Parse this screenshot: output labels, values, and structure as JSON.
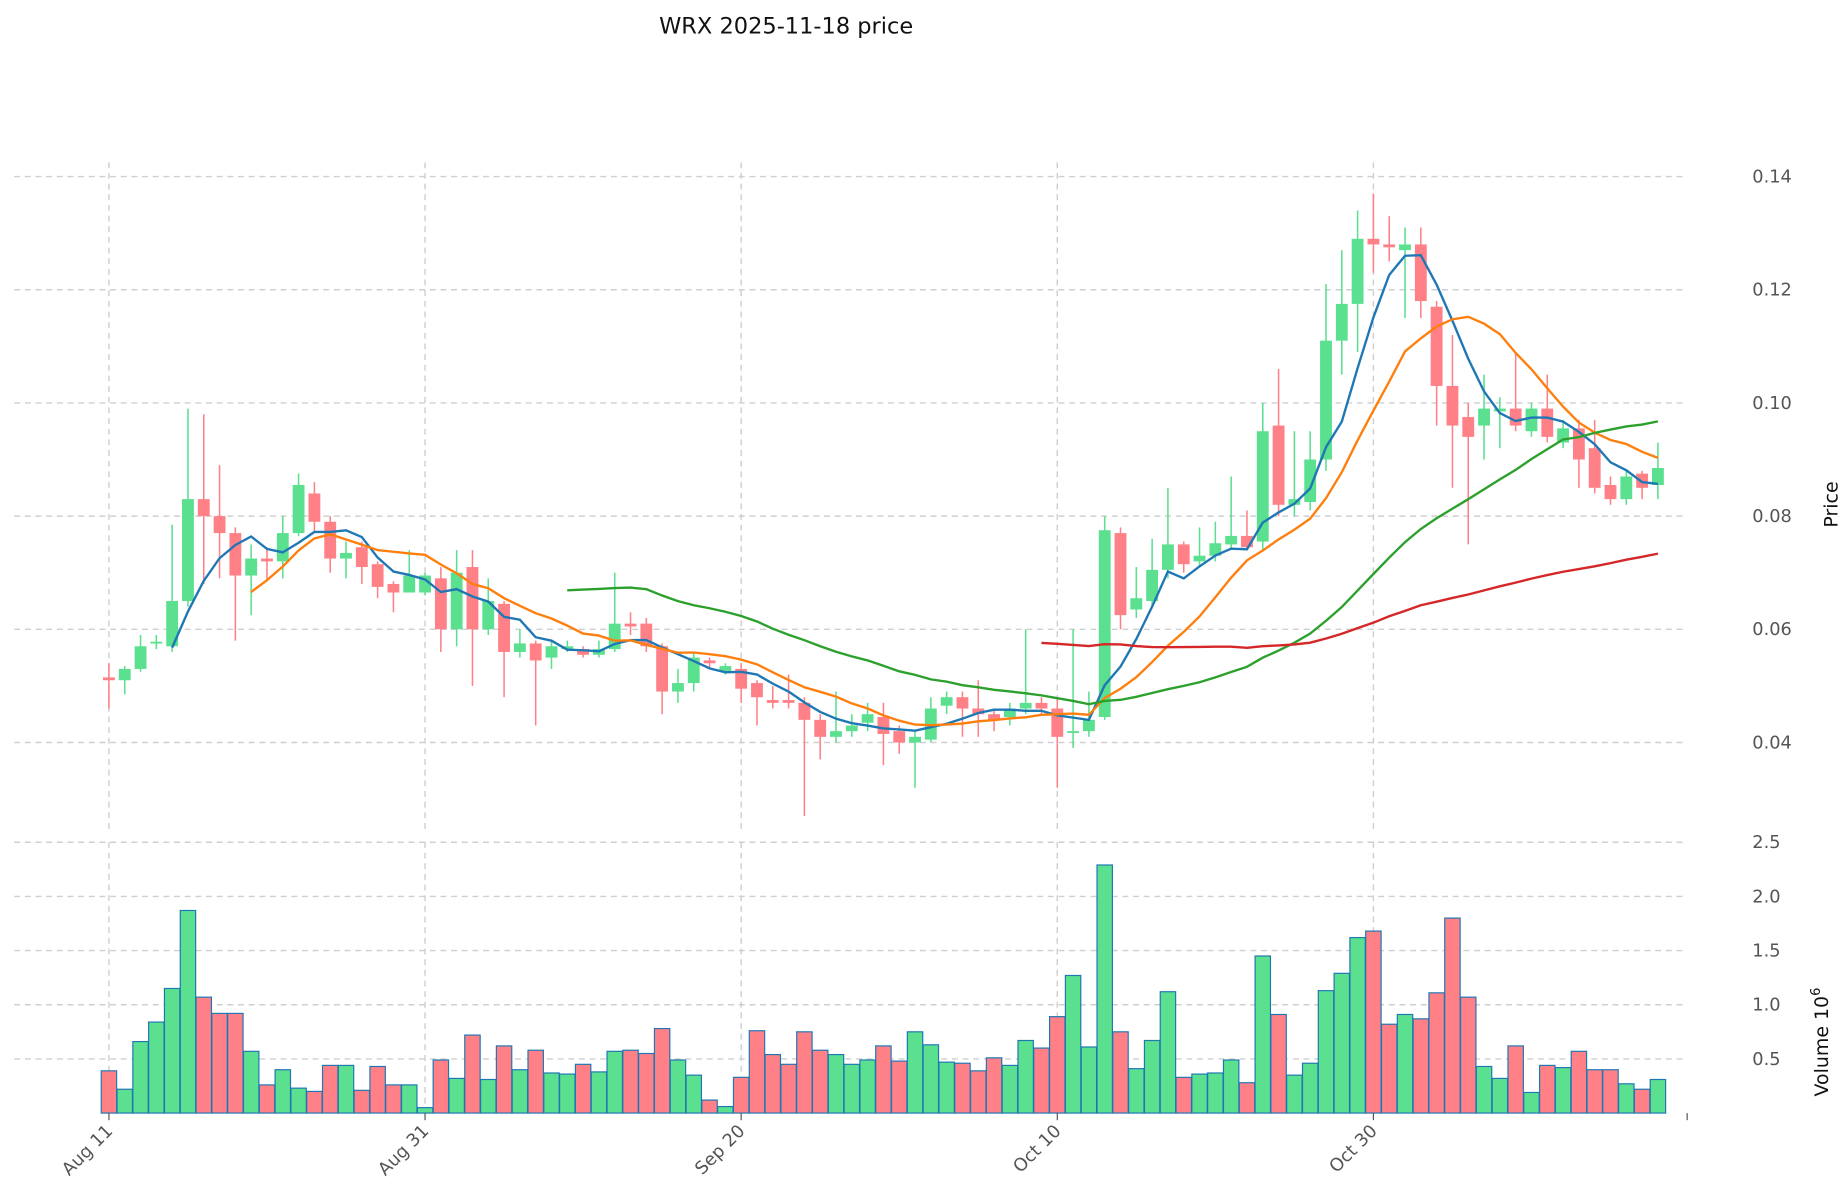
{
  "chart_data": {
    "type": "candlestick",
    "title": "WRX  2025-11-18  price",
    "ylabel": "Price",
    "volume_label": "Volume  10",
    "volume_exponent": "6",
    "ylim": [
      0.025,
      0.142
    ],
    "volume_ylim": [
      0,
      2.6
    ],
    "price_ticks": [
      "0.04",
      "0.06",
      "0.08",
      "0.10",
      "0.12",
      "0.14"
    ],
    "price_tick_values": [
      0.04,
      0.06,
      0.08,
      0.1,
      0.12,
      0.14
    ],
    "volume_ticks": [
      "0.5",
      "1.0",
      "1.5",
      "2.0",
      "2.5"
    ],
    "volume_tick_values": [
      0.5,
      1.0,
      1.5,
      2.0,
      2.5
    ],
    "x_ticks": [
      "Aug 11",
      "Aug 31",
      "Sep 20",
      "Oct 10",
      "Oct 30"
    ],
    "x_tick_index": [
      0,
      20,
      40,
      60,
      80
    ],
    "start_date": "2025-08-11",
    "colors": {
      "up": "#5ae08f",
      "down": "#ff8087",
      "volume_edge": "#1f77b4"
    },
    "moving_averages": [
      {
        "period": 5,
        "color": "#1f77b4"
      },
      {
        "period": 10,
        "color": "#ff7f0e"
      },
      {
        "period": 30,
        "color": "#2ca02c"
      },
      {
        "period": 60,
        "color": "#d62728"
      }
    ],
    "ohlc": [
      [
        0.0515,
        0.054,
        0.046,
        0.051
      ],
      [
        0.051,
        0.0535,
        0.0485,
        0.053
      ],
      [
        0.053,
        0.059,
        0.0525,
        0.057
      ],
      [
        0.0575,
        0.059,
        0.0565,
        0.0578
      ],
      [
        0.057,
        0.0785,
        0.056,
        0.065
      ],
      [
        0.065,
        0.099,
        0.064,
        0.083
      ],
      [
        0.083,
        0.098,
        0.068,
        0.08
      ],
      [
        0.08,
        0.089,
        0.069,
        0.077
      ],
      [
        0.077,
        0.078,
        0.058,
        0.0695
      ],
      [
        0.0695,
        0.075,
        0.0625,
        0.0725
      ],
      [
        0.0725,
        0.0745,
        0.0685,
        0.072
      ],
      [
        0.072,
        0.08,
        0.069,
        0.077
      ],
      [
        0.077,
        0.0875,
        0.0765,
        0.0855
      ],
      [
        0.084,
        0.086,
        0.077,
        0.079
      ],
      [
        0.079,
        0.08,
        0.07,
        0.0725
      ],
      [
        0.0725,
        0.0755,
        0.069,
        0.0735
      ],
      [
        0.0745,
        0.0755,
        0.068,
        0.071
      ],
      [
        0.0715,
        0.072,
        0.0655,
        0.0675
      ],
      [
        0.068,
        0.0685,
        0.063,
        0.0665
      ],
      [
        0.0665,
        0.074,
        0.0665,
        0.0695
      ],
      [
        0.0665,
        0.07,
        0.066,
        0.0695
      ],
      [
        0.069,
        0.071,
        0.056,
        0.06
      ],
      [
        0.06,
        0.074,
        0.057,
        0.07
      ],
      [
        0.071,
        0.074,
        0.05,
        0.06
      ],
      [
        0.06,
        0.069,
        0.059,
        0.065
      ],
      [
        0.0645,
        0.065,
        0.048,
        0.056
      ],
      [
        0.056,
        0.06,
        0.055,
        0.0575
      ],
      [
        0.0575,
        0.058,
        0.043,
        0.0545
      ],
      [
        0.055,
        0.058,
        0.053,
        0.057
      ],
      [
        0.0565,
        0.058,
        0.056,
        0.057
      ],
      [
        0.0565,
        0.057,
        0.055,
        0.0555
      ],
      [
        0.0555,
        0.058,
        0.055,
        0.0565
      ],
      [
        0.0565,
        0.07,
        0.056,
        0.061
      ],
      [
        0.061,
        0.063,
        0.059,
        0.0605
      ],
      [
        0.061,
        0.062,
        0.056,
        0.057
      ],
      [
        0.057,
        0.0575,
        0.045,
        0.049
      ],
      [
        0.049,
        0.053,
        0.047,
        0.0505
      ],
      [
        0.0505,
        0.056,
        0.049,
        0.055
      ],
      [
        0.0545,
        0.055,
        0.053,
        0.054
      ],
      [
        0.0525,
        0.054,
        0.052,
        0.0535
      ],
      [
        0.053,
        0.054,
        0.047,
        0.0495
      ],
      [
        0.0505,
        0.051,
        0.043,
        0.048
      ],
      [
        0.0475,
        0.05,
        0.046,
        0.047
      ],
      [
        0.0475,
        0.052,
        0.046,
        0.047
      ],
      [
        0.047,
        0.048,
        0.027,
        0.044
      ],
      [
        0.044,
        0.045,
        0.037,
        0.041
      ],
      [
        0.041,
        0.049,
        0.04,
        0.042
      ],
      [
        0.042,
        0.045,
        0.041,
        0.043
      ],
      [
        0.0435,
        0.047,
        0.042,
        0.045
      ],
      [
        0.0445,
        0.047,
        0.036,
        0.0415
      ],
      [
        0.042,
        0.043,
        0.038,
        0.04
      ],
      [
        0.04,
        0.042,
        0.032,
        0.041
      ],
      [
        0.0405,
        0.048,
        0.04,
        0.046
      ],
      [
        0.0465,
        0.049,
        0.045,
        0.048
      ],
      [
        0.048,
        0.049,
        0.041,
        0.046
      ],
      [
        0.046,
        0.051,
        0.041,
        0.045
      ],
      [
        0.045,
        0.046,
        0.042,
        0.044
      ],
      [
        0.0445,
        0.047,
        0.043,
        0.046
      ],
      [
        0.046,
        0.06,
        0.045,
        0.047
      ],
      [
        0.047,
        0.048,
        0.045,
        0.046
      ],
      [
        0.046,
        0.048,
        0.032,
        0.041
      ],
      [
        0.0418,
        0.06,
        0.039,
        0.042
      ],
      [
        0.042,
        0.049,
        0.041,
        0.044
      ],
      [
        0.0445,
        0.08,
        0.044,
        0.0775
      ],
      [
        0.077,
        0.078,
        0.06,
        0.0625
      ],
      [
        0.0635,
        0.071,
        0.062,
        0.0655
      ],
      [
        0.065,
        0.076,
        0.064,
        0.0705
      ],
      [
        0.0705,
        0.085,
        0.069,
        0.075
      ],
      [
        0.075,
        0.0755,
        0.07,
        0.0715
      ],
      [
        0.072,
        0.078,
        0.071,
        0.073
      ],
      [
        0.073,
        0.079,
        0.072,
        0.0752
      ],
      [
        0.075,
        0.087,
        0.074,
        0.0765
      ],
      [
        0.0765,
        0.081,
        0.074,
        0.0745
      ],
      [
        0.0755,
        0.1,
        0.074,
        0.095
      ],
      [
        0.096,
        0.106,
        0.08,
        0.082
      ],
      [
        0.082,
        0.095,
        0.08,
        0.083
      ],
      [
        0.0825,
        0.095,
        0.081,
        0.09
      ],
      [
        0.09,
        0.121,
        0.088,
        0.111
      ],
      [
        0.111,
        0.127,
        0.105,
        0.1175
      ],
      [
        0.1175,
        0.134,
        0.109,
        0.129
      ],
      [
        0.129,
        0.137,
        0.123,
        0.128
      ],
      [
        0.128,
        0.133,
        0.125,
        0.1275
      ],
      [
        0.127,
        0.131,
        0.115,
        0.128
      ],
      [
        0.128,
        0.131,
        0.115,
        0.118
      ],
      [
        0.117,
        0.118,
        0.096,
        0.103
      ],
      [
        0.103,
        0.112,
        0.085,
        0.096
      ],
      [
        0.0975,
        0.1,
        0.075,
        0.094
      ],
      [
        0.096,
        0.105,
        0.09,
        0.099
      ],
      [
        0.0985,
        0.101,
        0.092,
        0.099
      ],
      [
        0.099,
        0.109,
        0.095,
        0.096
      ],
      [
        0.095,
        0.1,
        0.094,
        0.099
      ],
      [
        0.099,
        0.105,
        0.093,
        0.094
      ],
      [
        0.093,
        0.097,
        0.092,
        0.0955
      ],
      [
        0.0955,
        0.097,
        0.085,
        0.09
      ],
      [
        0.092,
        0.097,
        0.084,
        0.085
      ],
      [
        0.0855,
        0.087,
        0.082,
        0.083
      ],
      [
        0.083,
        0.088,
        0.082,
        0.087
      ],
      [
        0.0875,
        0.088,
        0.083,
        0.085
      ],
      [
        0.0855,
        0.093,
        0.083,
        0.0885
      ]
    ],
    "volume": [
      0.39,
      0.22,
      0.66,
      0.84,
      1.15,
      1.87,
      1.07,
      0.92,
      0.92,
      0.57,
      0.26,
      0.4,
      0.23,
      0.2,
      0.44,
      0.44,
      0.21,
      0.43,
      0.26,
      0.26,
      0.05,
      0.49,
      0.32,
      0.72,
      0.31,
      0.62,
      0.4,
      0.58,
      0.37,
      0.36,
      0.45,
      0.38,
      0.57,
      0.58,
      0.55,
      0.78,
      0.49,
      0.35,
      0.12,
      0.06,
      0.33,
      0.76,
      0.54,
      0.45,
      0.75,
      0.58,
      0.54,
      0.45,
      0.49,
      0.62,
      0.48,
      0.75,
      0.63,
      0.47,
      0.46,
      0.39,
      0.51,
      0.44,
      0.67,
      0.6,
      0.89,
      1.27,
      0.61,
      2.29,
      0.75,
      0.41,
      0.67,
      1.12,
      0.33,
      0.36,
      0.37,
      0.49,
      0.28,
      1.45,
      0.91,
      0.35,
      0.46,
      1.13,
      1.29,
      1.62,
      1.68,
      0.82,
      0.91,
      0.87,
      1.11,
      1.8,
      1.07,
      0.43,
      0.32,
      0.62,
      0.19,
      0.44,
      0.42,
      0.57,
      0.4,
      0.4,
      0.27,
      0.22,
      0.31
    ]
  }
}
